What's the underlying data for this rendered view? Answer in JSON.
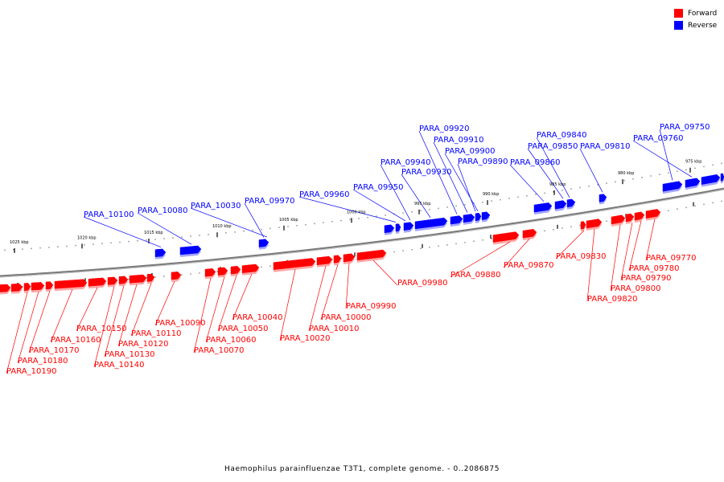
{
  "legend": {
    "forward_label": "Forward",
    "reverse_label": "Reverse",
    "forward_color": "#ff0000",
    "reverse_color": "#0000ff"
  },
  "caption": "Haemophilus parainfluenzae T3T1, complete genome. - 0..2086875",
  "scale_labels": [
    "975 kbp",
    "980 kbp",
    "985 kbp",
    "990 kbp",
    "995 kbp",
    "1000 kbp",
    "1005 kbp",
    "1010 kbp",
    "1015 kbp",
    "1020 kbp",
    "1025 kbp"
  ],
  "reverse_gene_labels": [
    "PARA_09750",
    "PARA_09760",
    "PARA_09810",
    "PARA_09840",
    "PARA_09850",
    "PARA_09860",
    "PARA_09890",
    "PARA_09900",
    "PARA_09910",
    "PARA_09920",
    "PARA_09930",
    "PARA_09940",
    "PARA_09950",
    "PARA_09960",
    "PARA_09970",
    "PARA_10030",
    "PARA_10080",
    "PARA_10100"
  ],
  "forward_gene_labels": [
    "PARA_09770",
    "PARA_09780",
    "PARA_09790",
    "PARA_09800",
    "PARA_09820",
    "PARA_09830",
    "PARA_09870",
    "PARA_09880",
    "PARA_09980",
    "PARA_09990",
    "PARA_10000",
    "PARA_10010",
    "PARA_10020",
    "PARA_10040",
    "PARA_10050",
    "PARA_10060",
    "PARA_10070",
    "PARA_10090",
    "PARA_10110",
    "PARA_10120",
    "PARA_10130",
    "PARA_10140",
    "PARA_10150",
    "PARA_10160",
    "PARA_10170",
    "PARA_10180",
    "PARA_10190"
  ]
}
